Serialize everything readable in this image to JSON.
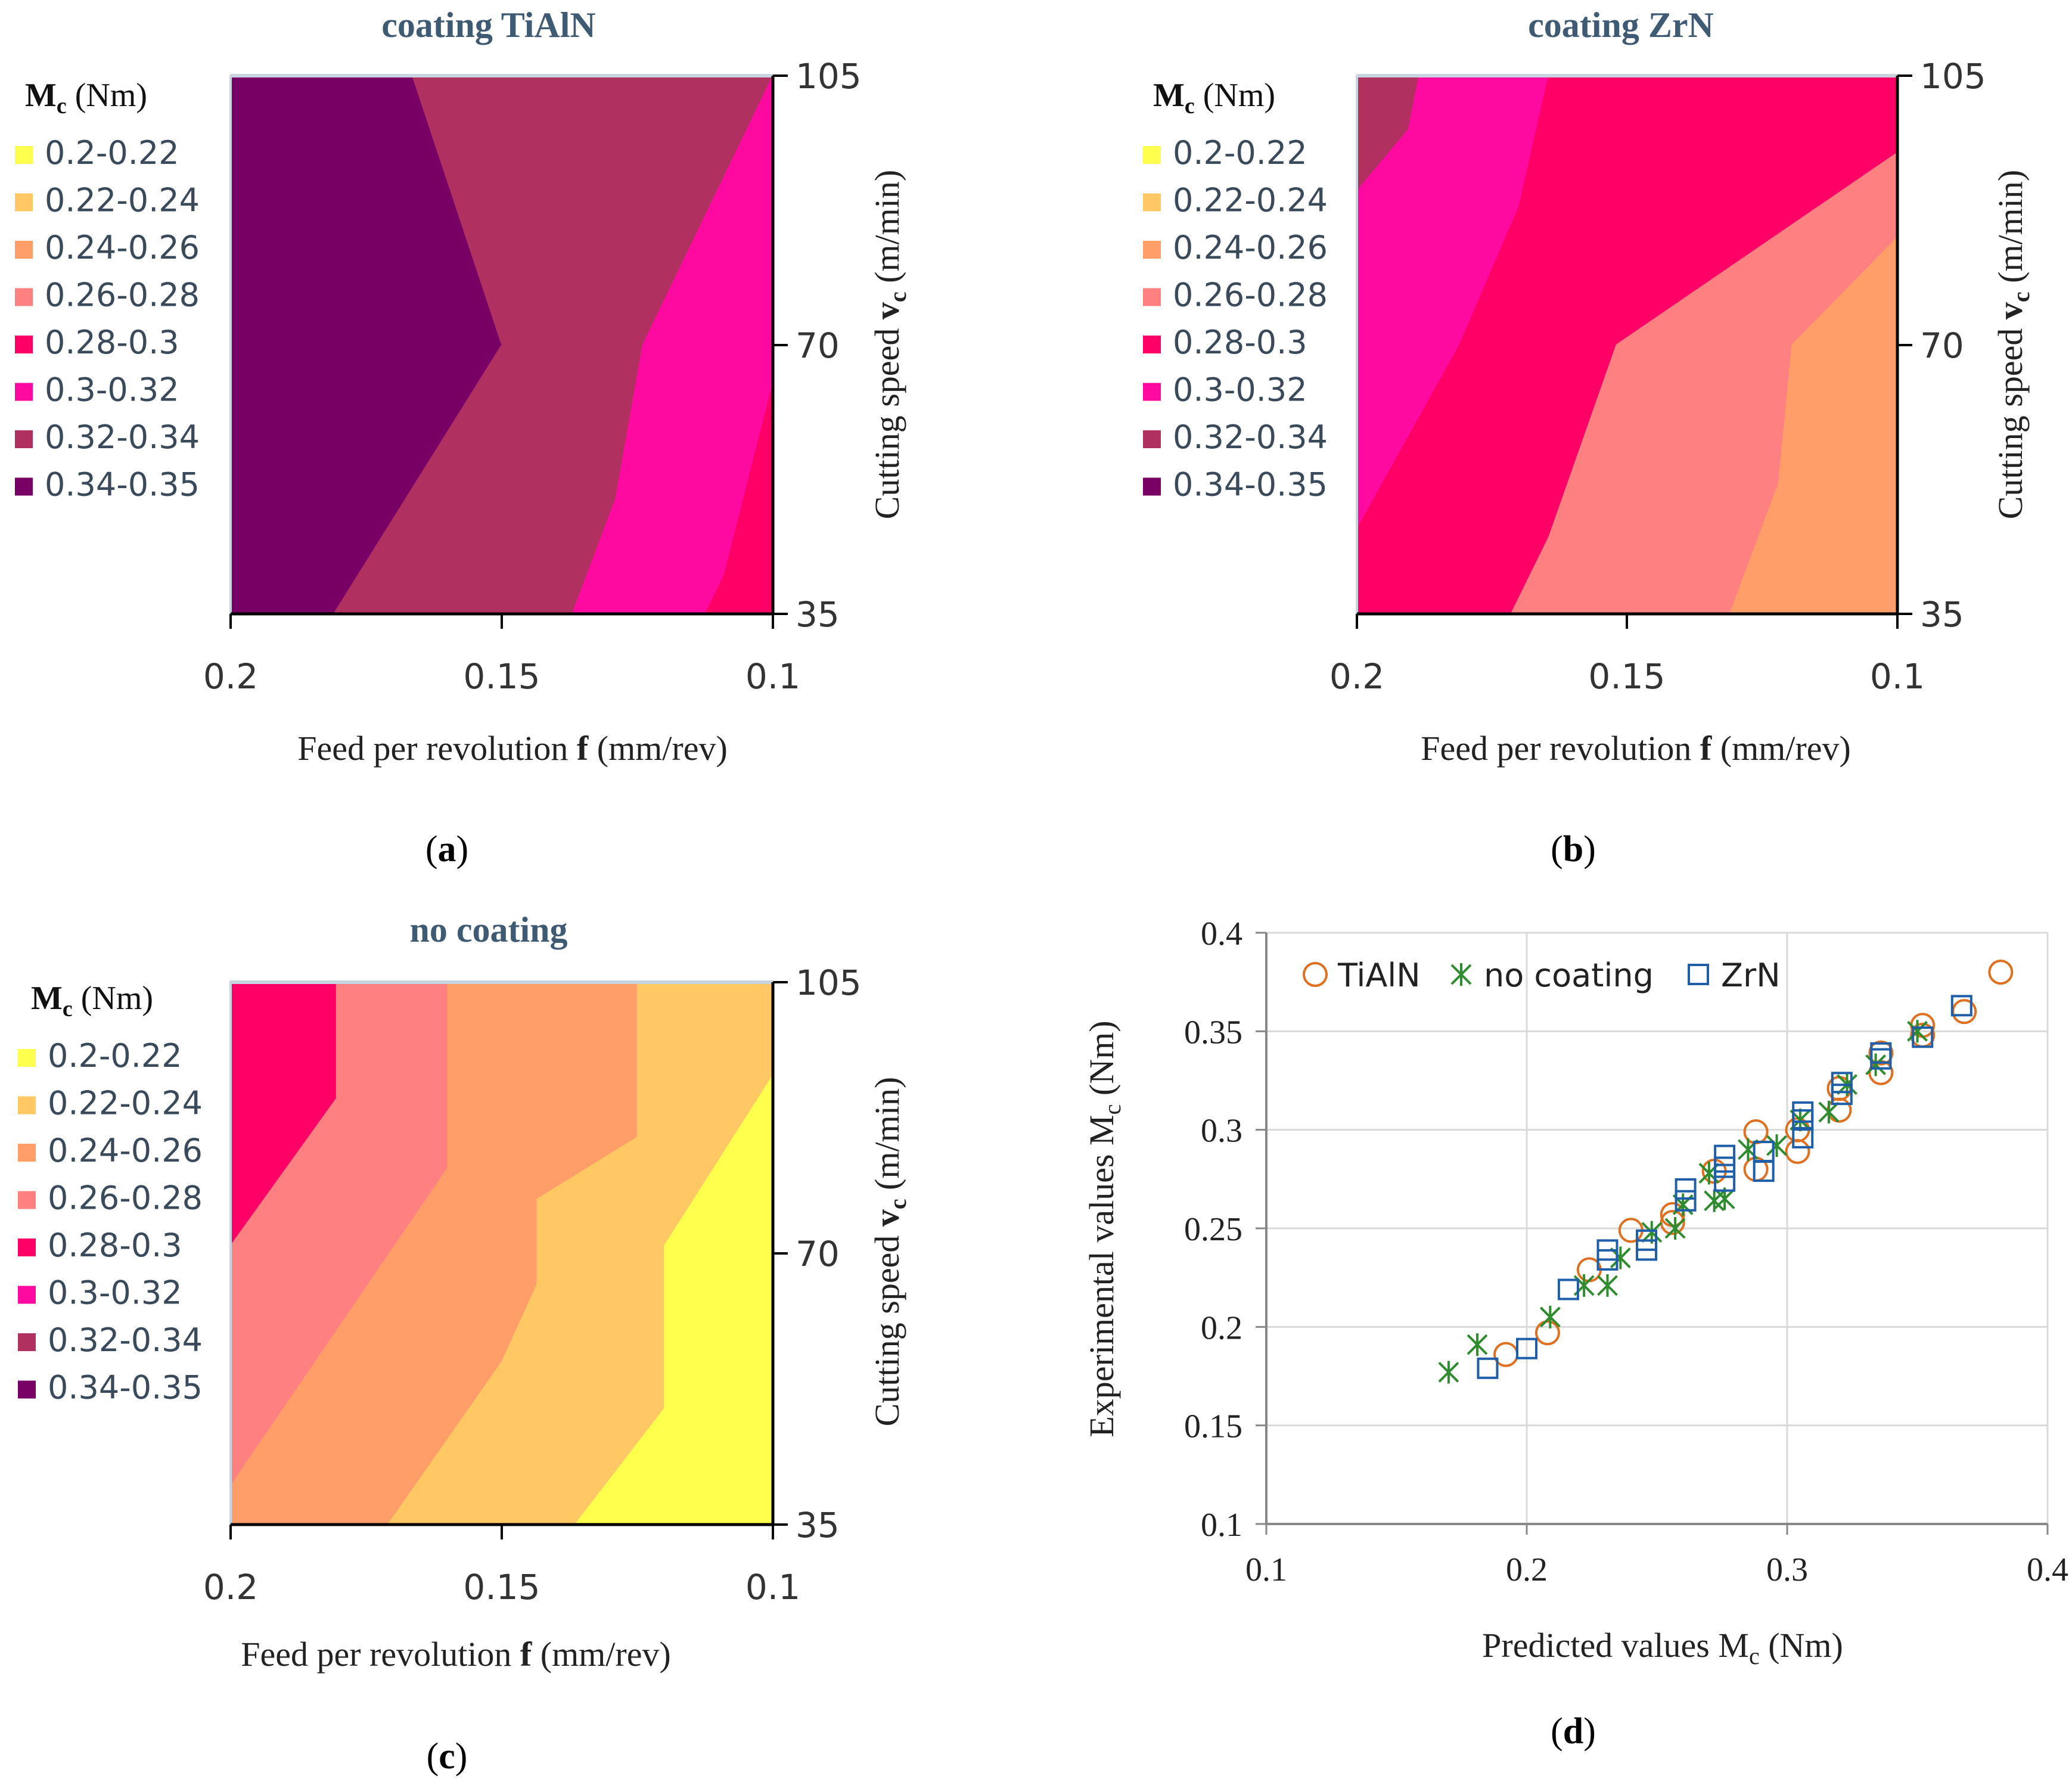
{
  "figure": {
    "panel_labels": [
      "(a)",
      "(b)",
      "(c)",
      "(d)"
    ]
  },
  "legend_common": {
    "title_symbol": "M",
    "title_sub": "c",
    "title_unit": " (Nm)",
    "ranges": [
      "0.2-0.22",
      "0.22-0.24",
      "0.24-0.26",
      "0.26-0.28",
      "0.28-0.3",
      "0.3-0.32",
      "0.32-0.34",
      "0.34-0.35"
    ],
    "colors": [
      "#ffff4d",
      "#ffc864",
      "#ff9e68",
      "#ff8080",
      "#ff0066",
      "#ff0aa0",
      "#b03060",
      "#780064"
    ]
  },
  "axes_common": {
    "x_label_prefix": "Feed per revolution ",
    "x_label_bold": "f",
    "x_label_suffix": " (mm/rev)",
    "y_label_prefix": "Cutting speed ",
    "y_label_bold": "v",
    "y_label_sub": "c",
    "y_label_suffix": " (m/min)",
    "x_ticks": [
      "0.2",
      "0.15",
      "0.1"
    ],
    "y_ticks": [
      "105",
      "70",
      "35"
    ]
  },
  "chart_data": [
    {
      "type": "heatmap",
      "panel": "(a)",
      "title": "coating TiAlN",
      "x_range": [
        0.2,
        0.1
      ],
      "y_range": [
        35,
        105
      ],
      "regions": [
        {
          "range": "0.34-0.35",
          "polygon": [
            [
              0.2,
              35
            ],
            [
              0.2,
              105
            ],
            [
              0.1665,
              105
            ],
            [
              0.15,
              70
            ],
            [
              0.181,
              35
            ]
          ]
        },
        {
          "range": "0.32-0.34",
          "polygon": [
            [
              0.181,
              35
            ],
            [
              0.15,
              70
            ],
            [
              0.1665,
              105
            ],
            [
              0.1,
              105
            ],
            [
              0.124,
              70
            ],
            [
              0.129,
              50
            ],
            [
              0.137,
              35
            ]
          ]
        },
        {
          "range": "0.3-0.32",
          "polygon": [
            [
              0.137,
              35
            ],
            [
              0.129,
              50
            ],
            [
              0.124,
              70
            ],
            [
              0.1,
              105
            ],
            [
              0.1,
              65
            ],
            [
              0.109,
              40
            ],
            [
              0.1125,
              35
            ]
          ]
        },
        {
          "range": "0.28-0.3",
          "polygon": [
            [
              0.1125,
              35
            ],
            [
              0.109,
              40
            ],
            [
              0.1,
              65
            ],
            [
              0.1,
              35
            ]
          ]
        }
      ]
    },
    {
      "type": "heatmap",
      "panel": "(b)",
      "title": "coating ZrN",
      "x_range": [
        0.2,
        0.1
      ],
      "y_range": [
        35,
        105
      ],
      "regions": [
        {
          "range": "0.32-0.34",
          "polygon": [
            [
              0.2,
              105
            ],
            [
              0.2,
              90
            ],
            [
              0.1905,
              98
            ],
            [
              0.1885,
              105
            ]
          ]
        },
        {
          "range": "0.3-0.32",
          "polygon": [
            [
              0.2,
              90
            ],
            [
              0.1905,
              98
            ],
            [
              0.1885,
              105
            ],
            [
              0.1645,
              105
            ],
            [
              0.17,
              88
            ],
            [
              0.181,
              70
            ],
            [
              0.2,
              46
            ]
          ]
        },
        {
          "range": "0.28-0.3",
          "polygon": [
            [
              0.2,
              46
            ],
            [
              0.181,
              70
            ],
            [
              0.17,
              88
            ],
            [
              0.1645,
              105
            ],
            [
              0.1,
              105
            ],
            [
              0.1,
              95
            ],
            [
              0.152,
              70
            ],
            [
              0.1645,
              45
            ],
            [
              0.1715,
              35
            ],
            [
              0.2,
              35
            ]
          ]
        },
        {
          "range": "0.26-0.28",
          "polygon": [
            [
              0.1715,
              35
            ],
            [
              0.1645,
              45
            ],
            [
              0.152,
              70
            ],
            [
              0.1,
              95
            ],
            [
              0.1,
              84
            ],
            [
              0.1195,
              70
            ],
            [
              0.122,
              52
            ],
            [
              0.131,
              35
            ]
          ]
        },
        {
          "range": "0.24-0.26",
          "polygon": [
            [
              0.131,
              35
            ],
            [
              0.122,
              52
            ],
            [
              0.1195,
              70
            ],
            [
              0.1,
              84
            ],
            [
              0.1,
              35
            ]
          ]
        }
      ]
    },
    {
      "type": "heatmap",
      "panel": "(c)",
      "title": "no coating",
      "x_range": [
        0.2,
        0.1
      ],
      "y_range": [
        35,
        105
      ],
      "regions": [
        {
          "range": "0.28-0.3",
          "polygon": [
            [
              0.2,
              105
            ],
            [
              0.2,
              71
            ],
            [
              0.1805,
              90
            ],
            [
              0.1805,
              105
            ]
          ]
        },
        {
          "range": "0.26-0.28",
          "polygon": [
            [
              0.2,
              71
            ],
            [
              0.1805,
              90
            ],
            [
              0.1805,
              105
            ],
            [
              0.16,
              105
            ],
            [
              0.16,
              81
            ],
            [
              0.2,
              40
            ]
          ]
        },
        {
          "range": "0.24-0.26",
          "polygon": [
            [
              0.2,
              40
            ],
            [
              0.16,
              81
            ],
            [
              0.16,
              105
            ],
            [
              0.125,
              105
            ],
            [
              0.125,
              85
            ],
            [
              0.1435,
              77
            ],
            [
              0.1435,
              66
            ],
            [
              0.15,
              56
            ],
            [
              0.171,
              35
            ],
            [
              0.2,
              35
            ]
          ]
        },
        {
          "range": "0.22-0.24",
          "polygon": [
            [
              0.171,
              35
            ],
            [
              0.15,
              56
            ],
            [
              0.1435,
              66
            ],
            [
              0.1435,
              77
            ],
            [
              0.125,
              85
            ],
            [
              0.125,
              105
            ],
            [
              0.1,
              105
            ],
            [
              0.1,
              93
            ],
            [
              0.12,
              71
            ],
            [
              0.12,
              50
            ],
            [
              0.1365,
              35
            ]
          ]
        },
        {
          "range": "0.2-0.22",
          "polygon": [
            [
              0.1365,
              35
            ],
            [
              0.12,
              50
            ],
            [
              0.12,
              71
            ],
            [
              0.1,
              93
            ],
            [
              0.1,
              35
            ]
          ]
        }
      ]
    },
    {
      "type": "scatter",
      "panel": "(d)",
      "xlabel_prefix": "Predicted values M",
      "xlabel_sub": "c",
      "xlabel_suffix": " (Nm)",
      "ylabel_prefix": "Experimental values M",
      "ylabel_sub": "c",
      "ylabel_suffix": " (Nm)",
      "xlim": [
        0.1,
        0.4
      ],
      "ylim": [
        0.1,
        0.4
      ],
      "x_ticks": [
        "0.1",
        "0.2",
        "0.3",
        "0.4"
      ],
      "y_ticks": [
        "0.1",
        "0.15",
        "0.2",
        "0.25",
        "0.3",
        "0.35",
        "0.4"
      ],
      "series": [
        {
          "name": "TiAlN",
          "marker": "circle",
          "color": "#e07020",
          "points": [
            [
              0.192,
              0.186
            ],
            [
              0.208,
              0.197
            ],
            [
              0.224,
              0.229
            ],
            [
              0.24,
              0.249
            ],
            [
              0.256,
              0.253
            ],
            [
              0.256,
              0.257
            ],
            [
              0.272,
              0.279
            ],
            [
              0.288,
              0.28
            ],
            [
              0.288,
              0.299
            ],
            [
              0.304,
              0.289
            ],
            [
              0.304,
              0.3
            ],
            [
              0.32,
              0.31
            ],
            [
              0.32,
              0.321
            ],
            [
              0.336,
              0.329
            ],
            [
              0.336,
              0.339
            ],
            [
              0.352,
              0.348
            ],
            [
              0.352,
              0.353
            ],
            [
              0.368,
              0.36
            ],
            [
              0.382,
              0.38
            ]
          ]
        },
        {
          "name": "no coating",
          "marker": "asterisk",
          "color": "#2e8b2e",
          "points": [
            [
              0.17,
              0.177
            ],
            [
              0.181,
              0.191
            ],
            [
              0.209,
              0.205
            ],
            [
              0.222,
              0.221
            ],
            [
              0.231,
              0.221
            ],
            [
              0.236,
              0.235
            ],
            [
              0.248,
              0.248
            ],
            [
              0.257,
              0.25
            ],
            [
              0.26,
              0.262
            ],
            [
              0.27,
              0.278
            ],
            [
              0.272,
              0.264
            ],
            [
              0.276,
              0.265
            ],
            [
              0.285,
              0.29
            ],
            [
              0.296,
              0.292
            ],
            [
              0.305,
              0.305
            ],
            [
              0.316,
              0.309
            ],
            [
              0.323,
              0.323
            ],
            [
              0.334,
              0.333
            ],
            [
              0.35,
              0.35
            ]
          ]
        },
        {
          "name": "ZrN",
          "marker": "square",
          "color": "#1f5fa8",
          "points": [
            [
              0.185,
              0.179
            ],
            [
              0.2,
              0.189
            ],
            [
              0.216,
              0.219
            ],
            [
              0.231,
              0.234
            ],
            [
              0.231,
              0.239
            ],
            [
              0.246,
              0.239
            ],
            [
              0.246,
              0.244
            ],
            [
              0.261,
              0.264
            ],
            [
              0.261,
              0.27
            ],
            [
              0.276,
              0.274
            ],
            [
              0.276,
              0.281
            ],
            [
              0.276,
              0.287
            ],
            [
              0.291,
              0.279
            ],
            [
              0.291,
              0.289
            ],
            [
              0.306,
              0.296
            ],
            [
              0.306,
              0.305
            ],
            [
              0.306,
              0.309
            ],
            [
              0.321,
              0.318
            ],
            [
              0.321,
              0.324
            ],
            [
              0.336,
              0.336
            ],
            [
              0.336,
              0.339
            ],
            [
              0.352,
              0.347
            ],
            [
              0.367,
              0.363
            ]
          ]
        }
      ]
    }
  ]
}
